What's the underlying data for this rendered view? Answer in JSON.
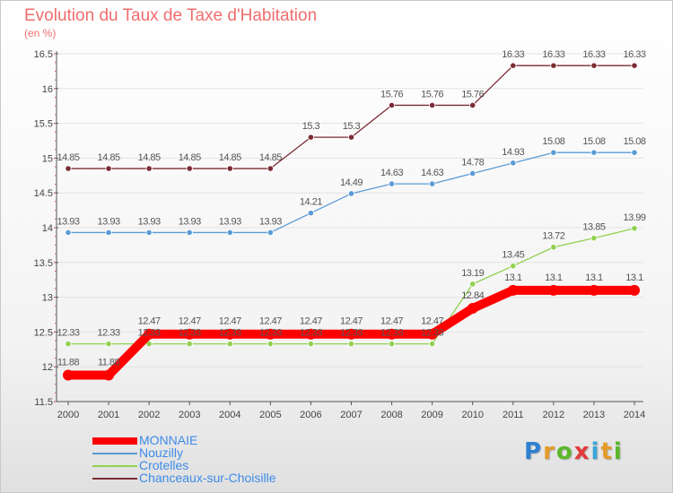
{
  "colors": {
    "title": "#ef6d6d",
    "legend_text": "#3d8be8",
    "axis": "#555555",
    "grid": "#e3e3e3",
    "tick_mark": "#e06666"
  },
  "logo": {
    "text": "Proxiti",
    "letter_colors": [
      "#2f7fd3",
      "#e59a2a",
      "#5ab82a",
      "#e23b3b",
      "#3aa6d6",
      "#e59a2a",
      "#5ab82a"
    ]
  },
  "chart_data": {
    "type": "line",
    "title": "Evolution du Taux de Taxe d'Habitation",
    "subtitle": "(en %)",
    "x": [
      "2000",
      "2001",
      "2002",
      "2003",
      "2004",
      "2005",
      "2006",
      "2007",
      "2008",
      "2009",
      "2010",
      "2011",
      "2012",
      "2013",
      "2014"
    ],
    "ylim": [
      11.5,
      16.5
    ],
    "yticks": [
      "11.5",
      "12",
      "12.5",
      "13",
      "13.5",
      "14",
      "14.5",
      "15",
      "15.5",
      "16",
      "16.5"
    ],
    "grid": "horizontal",
    "legend_position": "bottom-left",
    "series": [
      {
        "name": "MONNAIE",
        "color": "#ff0000",
        "emphasis": true,
        "values": [
          11.88,
          11.88,
          12.47,
          12.47,
          12.47,
          12.47,
          12.47,
          12.47,
          12.47,
          12.47,
          12.84,
          13.1,
          13.1,
          13.1,
          13.1
        ],
        "labels": [
          "11.88",
          "11.88",
          "12.47",
          "12.47",
          "12.47",
          "12.47",
          "12.47",
          "12.47",
          "12.47",
          "12.47",
          "12.84",
          "13.1",
          "13.1",
          "13.1",
          "13.1"
        ]
      },
      {
        "name": "Nouzilly",
        "color": "#5b9bd5",
        "values": [
          13.93,
          13.93,
          13.93,
          13.93,
          13.93,
          13.93,
          14.21,
          14.49,
          14.63,
          14.63,
          14.78,
          14.93,
          15.08,
          15.08,
          15.08
        ],
        "labels": [
          "13.93",
          "13.93",
          "13.93",
          "13.93",
          "13.93",
          "13.93",
          "14.21",
          "14.49",
          "14.63",
          "14.63",
          "14.78",
          "14.93",
          "15.08",
          "15.08",
          "15.08"
        ]
      },
      {
        "name": "Crotelles",
        "color": "#92d050",
        "values": [
          12.33,
          12.33,
          12.33,
          12.33,
          12.33,
          12.33,
          12.33,
          12.33,
          12.33,
          12.33,
          13.19,
          13.45,
          13.72,
          13.85,
          13.99
        ],
        "labels": [
          "12.33",
          "12.33",
          "12.33",
          "12.33",
          "12.33",
          "12.33",
          "12.33",
          "12.33",
          "12.33",
          "12.33",
          "13.19",
          "13.45",
          "13.72",
          "13.85",
          "13.99"
        ]
      },
      {
        "name": "Chanceaux-sur-Choisille",
        "color": "#7b2c34",
        "values": [
          14.85,
          14.85,
          14.85,
          14.85,
          14.85,
          14.85,
          15.3,
          15.3,
          15.76,
          15.76,
          15.76,
          16.33,
          16.33,
          16.33,
          16.33
        ],
        "labels": [
          "14.85",
          "14.85",
          "14.85",
          "14.85",
          "14.85",
          "14.85",
          "15.3",
          "15.3",
          "15.76",
          "15.76",
          "15.76",
          "16.33",
          "16.33",
          "16.33",
          "16.33"
        ]
      }
    ]
  }
}
